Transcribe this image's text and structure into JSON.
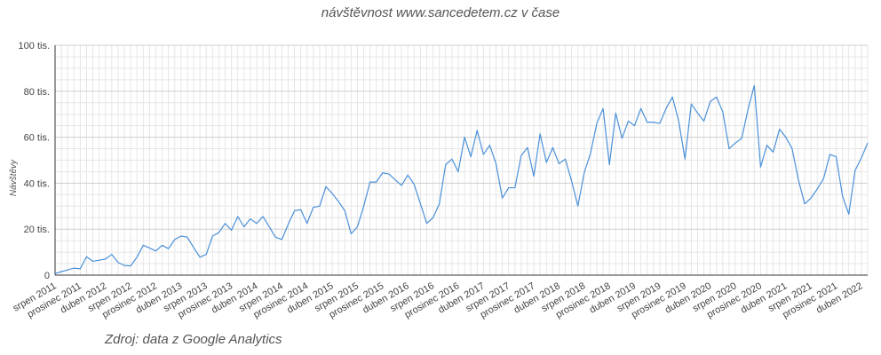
{
  "chart_data": {
    "type": "line",
    "title": "návštěvnost www.sancedetem.cz v čase",
    "ylabel": "Návštěvy",
    "xlabel": "",
    "source": "Zdroj: data z Google Analytics",
    "ylim": [
      0,
      100000
    ],
    "grid": true,
    "y_ticks": [
      {
        "value": 0,
        "label": "0"
      },
      {
        "value": 20000,
        "label": "20 tis."
      },
      {
        "value": 40000,
        "label": "40 tis."
      },
      {
        "value": 60000,
        "label": "60 tis."
      },
      {
        "value": 80000,
        "label": "80 tis."
      },
      {
        "value": 100000,
        "label": "100 tis."
      }
    ],
    "x_start": "2011-08",
    "x_tick_labels": [
      {
        "index": 0,
        "label": "srpen 2011"
      },
      {
        "index": 4,
        "label": "prosinec 2011"
      },
      {
        "index": 8,
        "label": "duben 2012"
      },
      {
        "index": 12,
        "label": "srpen 2012"
      },
      {
        "index": 16,
        "label": "prosinec 2012"
      },
      {
        "index": 20,
        "label": "duben 2013"
      },
      {
        "index": 24,
        "label": "srpen 2013"
      },
      {
        "index": 28,
        "label": "prosinec 2013"
      },
      {
        "index": 32,
        "label": "duben 2014"
      },
      {
        "index": 36,
        "label": "srpen 2014"
      },
      {
        "index": 40,
        "label": "prosinec 2014"
      },
      {
        "index": 44,
        "label": "duben 2015"
      },
      {
        "index": 48,
        "label": "srpen 2015"
      },
      {
        "index": 52,
        "label": "prosinec 2015"
      },
      {
        "index": 56,
        "label": "duben 2016"
      },
      {
        "index": 60,
        "label": "srpen 2016"
      },
      {
        "index": 64,
        "label": "prosinec 2016"
      },
      {
        "index": 68,
        "label": "duben 2017"
      },
      {
        "index": 72,
        "label": "srpen 2017"
      },
      {
        "index": 76,
        "label": "prosinec 2017"
      },
      {
        "index": 80,
        "label": "duben 2018"
      },
      {
        "index": 84,
        "label": "srpen 2018"
      },
      {
        "index": 88,
        "label": "prosinec 2018"
      },
      {
        "index": 92,
        "label": "duben 2019"
      },
      {
        "index": 96,
        "label": "srpen 2019"
      },
      {
        "index": 100,
        "label": "prosinec 2019"
      },
      {
        "index": 104,
        "label": "duben 2020"
      },
      {
        "index": 108,
        "label": "srpen 2020"
      },
      {
        "index": 112,
        "label": "prosinec 2020"
      },
      {
        "index": 116,
        "label": "duben 2021"
      },
      {
        "index": 120,
        "label": "srpen 2021"
      },
      {
        "index": 124,
        "label": "prosinec 2021"
      },
      {
        "index": 128,
        "label": "duben 2022"
      }
    ],
    "series": [
      {
        "name": "Návštěvy",
        "color": "#4a90d9",
        "values": [
          700,
          1500,
          2300,
          3000,
          2800,
          8000,
          6000,
          6500,
          7000,
          9000,
          5500,
          4200,
          4000,
          7800,
          13000,
          11800,
          10500,
          13000,
          11500,
          15500,
          17000,
          16500,
          12000,
          7800,
          9000,
          17000,
          18500,
          22500,
          19500,
          25500,
          21000,
          24500,
          22500,
          25500,
          21000,
          16500,
          15500,
          22000,
          28000,
          28500,
          22500,
          29500,
          30000,
          38500,
          35500,
          32000,
          28000,
          18000,
          21000,
          30000,
          40500,
          40500,
          44500,
          44000,
          41500,
          39000,
          43500,
          39500,
          31000,
          22500,
          25000,
          31000,
          48000,
          50500,
          45000,
          60000,
          51500,
          63000,
          52500,
          56500,
          48500,
          33500,
          38000,
          38000,
          52000,
          55500,
          43000,
          61500,
          49000,
          55500,
          48500,
          50500,
          41000,
          30000,
          44500,
          53000,
          66000,
          72500,
          48000,
          70500,
          59500,
          67000,
          65000,
          72500,
          66500,
          66500,
          66000,
          72500,
          77500,
          67000,
          50500,
          74500,
          70500,
          67000,
          75500,
          77500,
          71000,
          55000,
          57500,
          59500,
          72000,
          82500,
          47000,
          56500,
          53500,
          63500,
          60000,
          55000,
          41500,
          31000,
          33500,
          37500,
          42000,
          52500,
          51500,
          34500,
          26500,
          45500,
          51000,
          57500
        ]
      }
    ]
  }
}
